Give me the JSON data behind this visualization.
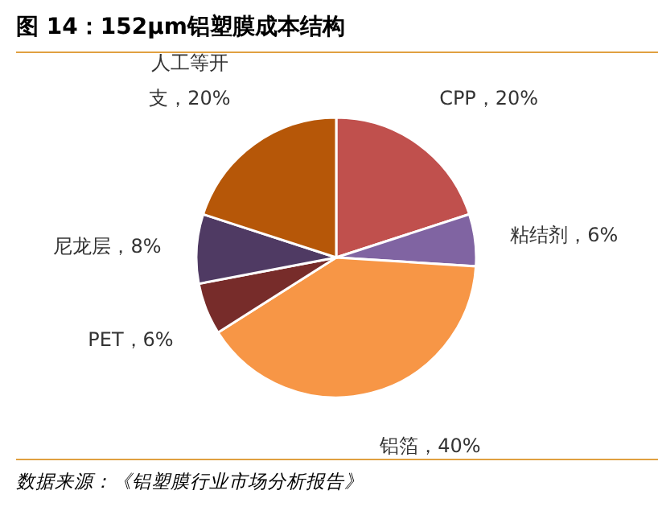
{
  "chart_data": {
    "type": "pie",
    "title": "图 14：152μm铝塑膜成本结构",
    "categories": [
      "CPP，20%",
      "粘结剂，6%",
      "铝箔，40%",
      "PET，6%",
      "尼龙层，8%",
      "人工等开支，20%"
    ],
    "values": [
      20,
      6,
      40,
      6,
      8,
      20
    ],
    "colors": [
      "#c0504d",
      "#8064a2",
      "#f79646",
      "#772c2a",
      "#4f3a63",
      "#b65708"
    ],
    "annotations": [
      "数据来源：《铝塑膜行业市场分析报告》"
    ]
  }
}
